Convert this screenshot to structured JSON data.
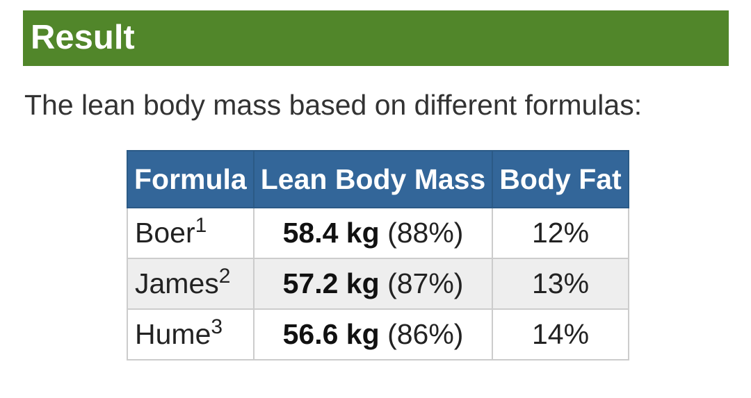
{
  "header": {
    "title": "Result"
  },
  "intro_text": "The lean body mass based on different formulas:",
  "table": {
    "columns": [
      "Formula",
      "Lean Body Mass",
      "Body Fat"
    ],
    "rows": [
      {
        "formula": "Boer",
        "ref": "1",
        "lbm": "58.4 kg",
        "lbm_pct": "(88%)",
        "body_fat": "12%"
      },
      {
        "formula": "James",
        "ref": "2",
        "lbm": "57.2 kg",
        "lbm_pct": "(87%)",
        "body_fat": "13%"
      },
      {
        "formula": "Hume",
        "ref": "3",
        "lbm": "56.6 kg",
        "lbm_pct": "(86%)",
        "body_fat": "14%"
      }
    ]
  },
  "colors": {
    "header_green": "#51862a",
    "table_header_blue": "#336699",
    "alt_row": "#eeeeee"
  }
}
